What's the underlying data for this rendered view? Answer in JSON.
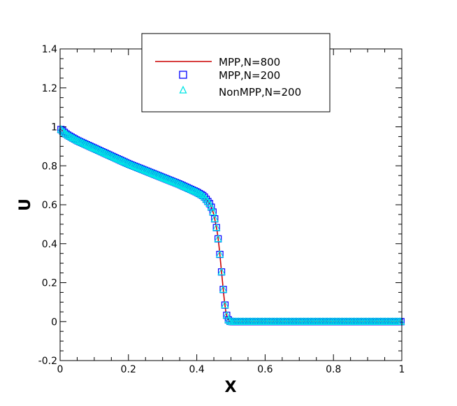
{
  "chart_data": {
    "type": "line",
    "xlabel": "X",
    "ylabel": "U",
    "xlim": [
      0,
      1
    ],
    "ylim": [
      -0.2,
      1.4
    ],
    "x_ticks": [
      0,
      0.2,
      0.4,
      0.6,
      0.8,
      1
    ],
    "x_tick_labels": [
      "0",
      "0.2",
      "0.4",
      "0.6",
      "0.8",
      "1"
    ],
    "y_ticks": [
      -0.2,
      0,
      0.2,
      0.4,
      0.6,
      0.8,
      1,
      1.2,
      1.4
    ],
    "y_tick_labels": [
      "-0.2",
      "0",
      "0.2",
      "0.4",
      "0.6",
      "0.8",
      "1",
      "1.2",
      "1.4"
    ],
    "grid": false,
    "legend_position": "top-center",
    "profile": {
      "x": [
        0,
        0.02,
        0.05,
        0.1,
        0.15,
        0.2,
        0.25,
        0.3,
        0.35,
        0.4,
        0.42,
        0.44,
        0.45,
        0.46,
        0.465,
        0.47,
        0.475,
        0.48,
        0.485,
        0.49,
        0.495,
        0.5,
        1.0
      ],
      "y": [
        0.99,
        0.96,
        0.93,
        0.89,
        0.85,
        0.81,
        0.775,
        0.74,
        0.705,
        0.665,
        0.645,
        0.6,
        0.55,
        0.46,
        0.39,
        0.3,
        0.21,
        0.12,
        0.05,
        0.015,
        0.003,
        0,
        0
      ]
    },
    "series": [
      {
        "name": "MPP,N=800",
        "marker": "line",
        "color": "#cc0000",
        "n": 800
      },
      {
        "name": "MPP,N=200",
        "marker": "square",
        "color": "#0000ff",
        "n": 200
      },
      {
        "name": "NonMPP,N=200",
        "marker": "triangle",
        "color": "#00e5e5",
        "n": 200
      }
    ]
  }
}
